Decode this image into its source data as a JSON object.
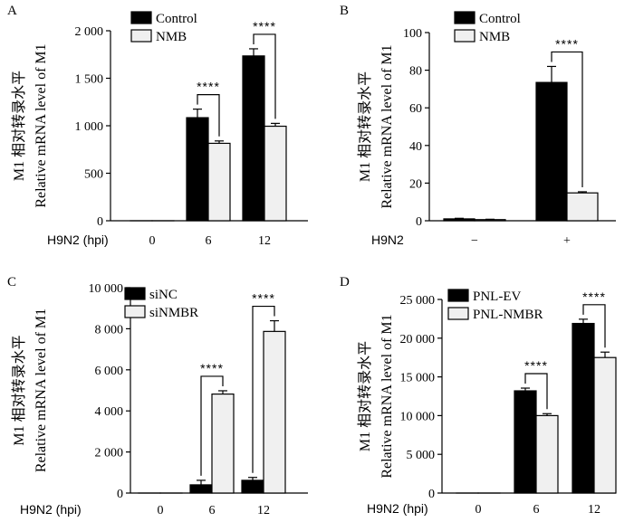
{
  "chart_data": [
    {
      "panel": "A",
      "type": "bar",
      "title": "",
      "ylabel_cn": "M1 相对转录水平",
      "ylabel_en": "Relative mRNA level of M1",
      "xlabel": "H9N2 (hpi)",
      "categories": [
        "0",
        "6",
        "12"
      ],
      "ylim": [
        0,
        2000
      ],
      "yticks": [
        0,
        500,
        1000,
        1500,
        2000
      ],
      "ytick_labels": [
        "0",
        "500",
        "1 000",
        "1 500",
        "2 000"
      ],
      "series": [
        {
          "name": "Control",
          "color": "#000000",
          "values": [
            0,
            1085,
            1735
          ],
          "errors": [
            0,
            90,
            75
          ]
        },
        {
          "name": "NMB",
          "color": "#f0f0f0",
          "values": [
            0,
            815,
            995
          ],
          "errors": [
            0,
            25,
            30
          ]
        }
      ],
      "significance": [
        {
          "category_index": 1,
          "label": "****"
        },
        {
          "category_index": 2,
          "label": "****"
        }
      ],
      "legend": "top-left"
    },
    {
      "panel": "B",
      "type": "bar",
      "title": "",
      "ylabel_cn": "M1 相对转录水平",
      "ylabel_en": "Relative mRNA level of M1",
      "xlabel": "H9N2",
      "categories": [
        "−",
        "+"
      ],
      "ylim": [
        0,
        100
      ],
      "yticks": [
        0,
        20,
        40,
        60,
        80,
        100
      ],
      "ytick_labels": [
        "0",
        "20",
        "40",
        "60",
        "80",
        "100"
      ],
      "series": [
        {
          "name": "Control",
          "color": "#000000",
          "values": [
            1,
            73.5
          ],
          "errors": [
            0.3,
            8.5
          ]
        },
        {
          "name": "NMB",
          "color": "#f0f0f0",
          "values": [
            0.6,
            14.8
          ],
          "errors": [
            0.2,
            0.6
          ]
        }
      ],
      "significance": [
        {
          "category_index": 1,
          "label": "****"
        }
      ],
      "legend": "top-left"
    },
    {
      "panel": "C",
      "type": "bar",
      "title": "",
      "ylabel_cn": "M1 相对转录水平",
      "ylabel_en": "Relative mRNA level of M1",
      "xlabel": "H9N2 (hpi)",
      "categories": [
        "0",
        "6",
        "12"
      ],
      "ylim": [
        0,
        10000
      ],
      "yticks": [
        0,
        2000,
        4000,
        6000,
        8000,
        10000
      ],
      "ytick_labels": [
        "0",
        "2 000",
        "4 000",
        "6 000",
        "8 000",
        "10 000"
      ],
      "series": [
        {
          "name": "siNC",
          "color": "#000000",
          "values": [
            0,
            400,
            620
          ],
          "errors": [
            0,
            220,
            140
          ]
        },
        {
          "name": "siNMBR",
          "color": "#f0f0f0",
          "values": [
            0,
            4820,
            7870
          ],
          "errors": [
            0,
            160,
            520
          ]
        }
      ],
      "significance": [
        {
          "category_index": 1,
          "label": "****"
        },
        {
          "category_index": 2,
          "label": "****"
        }
      ],
      "legend": "top-left"
    },
    {
      "panel": "D",
      "type": "bar",
      "title": "",
      "ylabel_cn": "M1 相对转录水平",
      "ylabel_en": "Relative mRNA level of M1",
      "xlabel": "H9N2 (hpi)",
      "categories": [
        "0",
        "6",
        "12"
      ],
      "ylim": [
        0,
        25000
      ],
      "yticks": [
        0,
        5000,
        10000,
        15000,
        20000,
        25000
      ],
      "ytick_labels": [
        "0",
        "5 000",
        "10 000",
        "15 000",
        "20 000",
        "25 000"
      ],
      "series": [
        {
          "name": "PNL-EV",
          "color": "#000000",
          "values": [
            0,
            13200,
            21900
          ],
          "errors": [
            0,
            350,
            550
          ]
        },
        {
          "name": "PNL-NMBR",
          "color": "#f0f0f0",
          "values": [
            0,
            10000,
            17500
          ],
          "errors": [
            0,
            250,
            700
          ]
        }
      ],
      "significance": [
        {
          "category_index": 1,
          "label": "****"
        },
        {
          "category_index": 2,
          "label": "****"
        }
      ],
      "legend": "top-left"
    }
  ]
}
